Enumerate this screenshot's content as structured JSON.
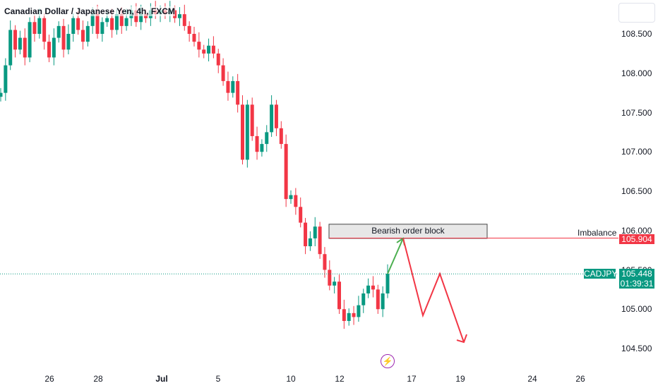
{
  "chart_title": "Canadian Dollar / Japanese Yen, 4h, FXCM",
  "colors": {
    "up": "#089981",
    "down": "#f23645",
    "arrow_up": "#4caf50",
    "arrow_down": "#f23645",
    "annotation": "#9c27b0"
  },
  "icons": {
    "event": "lightning-bolt-icon"
  },
  "symbol": "CADJPY",
  "current_price": "105.448",
  "countdown": "01:39:31",
  "imbalance": {
    "label": "Imbalance",
    "price_label": "105.904",
    "price": 105.904
  },
  "order_block": {
    "label": "Bearish order block",
    "top": 106.08,
    "bottom": 105.9
  },
  "chart_data": {
    "type": "candlestick",
    "title": "Canadian Dollar / Japanese Yen, 4h, FXCM",
    "ylim": [
      104.42,
      108.8
    ],
    "y_ticks": [
      "108.500",
      "108.000",
      "107.500",
      "107.000",
      "106.500",
      "106.000",
      "105.500",
      "105.000",
      "104.500"
    ],
    "x_ticks": [
      "26",
      "28",
      "Jul",
      "5",
      "10",
      "12",
      "17",
      "19",
      "24",
      "26"
    ],
    "current_price_line": 105.448,
    "candles_close": [
      107.75,
      108.1,
      108.55,
      108.3,
      108.45,
      108.2,
      108.65,
      108.5,
      108.7,
      108.4,
      108.2,
      108.45,
      108.6,
      108.3,
      108.5,
      108.7,
      108.55,
      108.4,
      108.6,
      108.75,
      108.5,
      108.65,
      108.7,
      108.55,
      108.75,
      108.6,
      108.7,
      108.8,
      108.65,
      108.75,
      108.7,
      108.8,
      108.75,
      108.8,
      108.75,
      108.8,
      108.7,
      108.75,
      108.6,
      108.5,
      108.4,
      108.3,
      108.25,
      108.35,
      108.25,
      108.1,
      107.9,
      107.75,
      107.9,
      107.6,
      106.9,
      107.6,
      107.2,
      107.0,
      107.1,
      107.25,
      107.6,
      107.3,
      107.1,
      106.4,
      106.45,
      106.3,
      106.1,
      105.8,
      105.9,
      106.05,
      105.7,
      105.5,
      105.3,
      105.35,
      105.0,
      104.85,
      104.95,
      104.9,
      105.05,
      105.2,
      105.3,
      105.25,
      105.0,
      105.2,
      105.45
    ],
    "projection_path": [
      105.45,
      105.9,
      104.92,
      105.45,
      104.58
    ],
    "annotations": [
      "Bearish order block",
      "Imbalance"
    ]
  }
}
